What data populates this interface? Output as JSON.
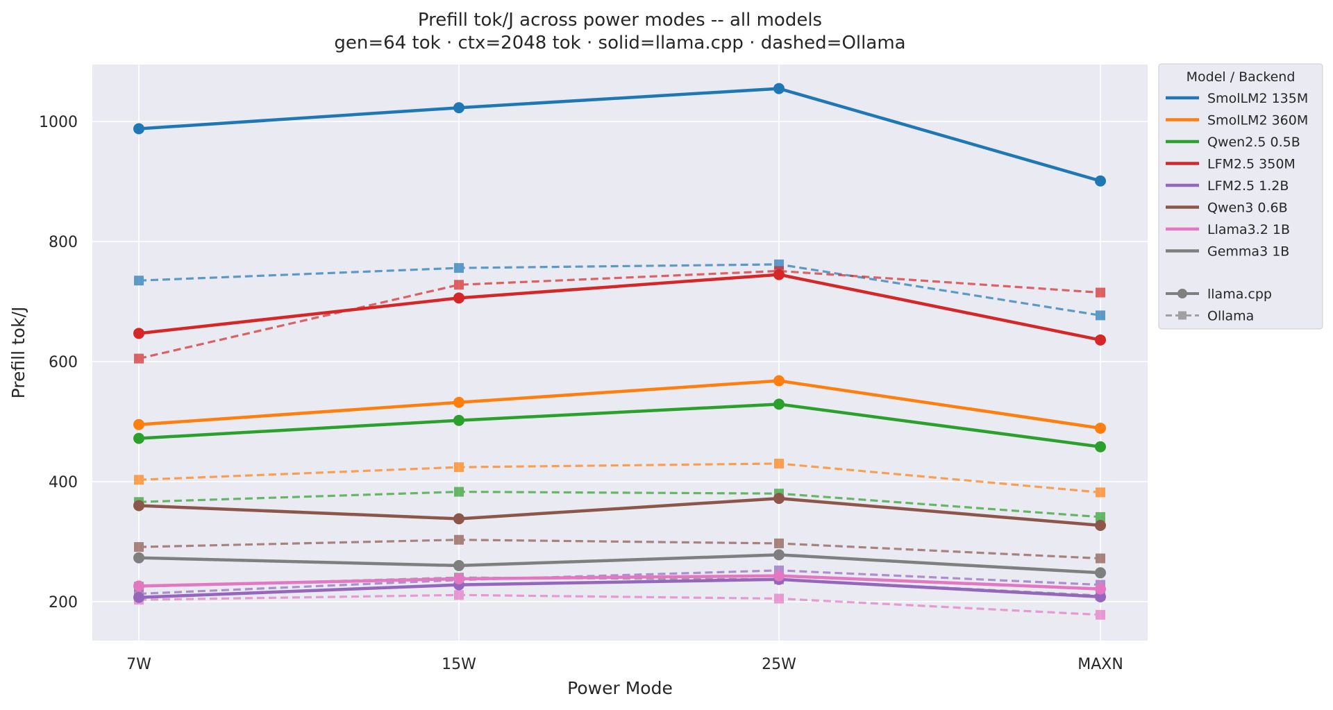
{
  "chart_data": {
    "type": "line",
    "title": "Prefill tok/J across power modes -- all models",
    "subtitle": "gen=64 tok · ctx=2048 tok · solid=llama.cpp · dashed=Ollama",
    "xlabel": "Power Mode",
    "ylabel": "Prefill tok/J",
    "categories": [
      "7W",
      "15W",
      "25W",
      "MAXN"
    ],
    "ylim": [
      135,
      1095
    ],
    "yticks": [
      200,
      400,
      600,
      800,
      1000
    ],
    "grid": true,
    "legend_position": "outside-top-right",
    "legend_title": "Model  /  Backend",
    "backends": [
      {
        "label": "llama.cpp",
        "style": "solid",
        "marker": "circle"
      },
      {
        "label": "Ollama",
        "style": "dashed",
        "marker": "square"
      }
    ],
    "series": [
      {
        "name": "SmolLM2 135M",
        "color": "#1f77b4",
        "llama_cpp": [
          988,
          1023,
          1055,
          901
        ],
        "ollama": [
          735,
          756,
          762,
          677
        ]
      },
      {
        "name": "SmolLM2 360M",
        "color": "#ff7f0e",
        "llama_cpp": [
          495,
          532,
          568,
          489
        ],
        "ollama": [
          403,
          424,
          430,
          382
        ]
      },
      {
        "name": "Qwen2.5 0.5B",
        "color": "#2ca02c",
        "llama_cpp": [
          472,
          502,
          529,
          458
        ],
        "ollama": [
          366,
          383,
          380,
          341
        ]
      },
      {
        "name": "LFM2.5 350M",
        "color": "#d62728",
        "llama_cpp": [
          647,
          706,
          745,
          636
        ],
        "ollama": [
          605,
          728,
          751,
          715
        ]
      },
      {
        "name": "LFM2.5 1.2B",
        "color": "#9467bd",
        "llama_cpp": [
          207,
          228,
          237,
          208
        ],
        "ollama": [
          213,
          236,
          252,
          228
        ]
      },
      {
        "name": "Qwen3 0.6B",
        "color": "#8c564b",
        "llama_cpp": [
          360,
          338,
          372,
          327
        ],
        "ollama": [
          291,
          303,
          297,
          272
        ]
      },
      {
        "name": "Llama3.2 1B",
        "color": "#e377c2",
        "llama_cpp": [
          226,
          238,
          243,
          221
        ],
        "ollama": [
          203,
          211,
          205,
          178
        ]
      },
      {
        "name": "Gemma3 1B",
        "color": "#7f7f7f",
        "llama_cpp": [
          273,
          260,
          278,
          248
        ],
        "ollama": [
          225,
          240,
          237,
          210
        ]
      }
    ]
  }
}
